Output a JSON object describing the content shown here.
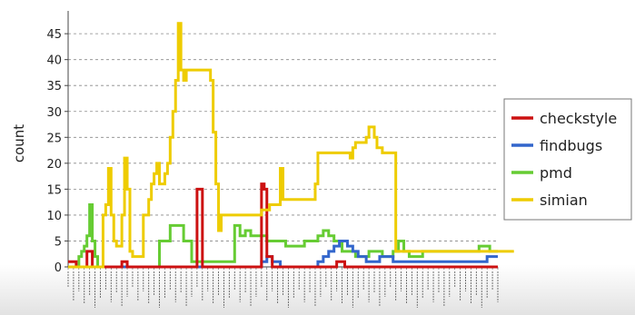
{
  "chart_data": {
    "type": "line",
    "title": "",
    "xlabel": "",
    "ylabel": "count",
    "ylim": [
      0,
      48
    ],
    "yticks": [
      0,
      5,
      10,
      15,
      20,
      25,
      30,
      35,
      40,
      45
    ],
    "grid": true,
    "legend_position": "right",
    "x_tick_labels_illegible": true,
    "step_count": 160,
    "series": [
      {
        "name": "checkstyle",
        "color": "#cc1111",
        "values": [
          1,
          1,
          1,
          0,
          0,
          0,
          0,
          3,
          3,
          0,
          0,
          0,
          0,
          0,
          0,
          0,
          0,
          0,
          0,
          0,
          1,
          1,
          0,
          0,
          0,
          0,
          0,
          0,
          0,
          0,
          0,
          0,
          0,
          0,
          0,
          0,
          0,
          0,
          0,
          0,
          0,
          0,
          0,
          0,
          0,
          0,
          0,
          0,
          15,
          15,
          0,
          0,
          0,
          0,
          0,
          0,
          0,
          0,
          0,
          0,
          0,
          0,
          0,
          0,
          0,
          0,
          0,
          0,
          0,
          0,
          0,
          0,
          16,
          15,
          2,
          2,
          0,
          0,
          0,
          0,
          0,
          0,
          0,
          0,
          0,
          0,
          0,
          0,
          0,
          0,
          0,
          0,
          0,
          0,
          0,
          0,
          0,
          0,
          0,
          0,
          1,
          1,
          1,
          0,
          0,
          0,
          0,
          0,
          0,
          0,
          0,
          0,
          0,
          0,
          0,
          0,
          0,
          0,
          0,
          0,
          0,
          0,
          0,
          0,
          0,
          0,
          0,
          0,
          0,
          0,
          0,
          0,
          0,
          0,
          0,
          0,
          0,
          0,
          0,
          0,
          0,
          0,
          0,
          0,
          0,
          0,
          0,
          0,
          0,
          0,
          0,
          0,
          0,
          0,
          0,
          0,
          0,
          0,
          0,
          0
        ]
      },
      {
        "name": "findbugs",
        "color": "#3366cc",
        "values": [
          0,
          0,
          0,
          0,
          0,
          0,
          0,
          0,
          0,
          0,
          0,
          0,
          0,
          0,
          0,
          0,
          0,
          0,
          0,
          0,
          0,
          0,
          0,
          0,
          0,
          0,
          0,
          0,
          0,
          0,
          0,
          0,
          0,
          0,
          0,
          0,
          0,
          0,
          0,
          0,
          0,
          0,
          0,
          0,
          0,
          0,
          0,
          0,
          0,
          0,
          0,
          0,
          0,
          0,
          0,
          0,
          0,
          0,
          0,
          0,
          0,
          0,
          0,
          0,
          0,
          0,
          0,
          0,
          0,
          0,
          0,
          0,
          1,
          1,
          2,
          2,
          1,
          1,
          1,
          0,
          0,
          0,
          0,
          0,
          0,
          0,
          0,
          0,
          0,
          0,
          0,
          0,
          0,
          1,
          1,
          2,
          2,
          3,
          3,
          4,
          4,
          5,
          5,
          5,
          4,
          4,
          3,
          3,
          2,
          2,
          2,
          1,
          1,
          1,
          1,
          1,
          2,
          2,
          2,
          2,
          2,
          1,
          1,
          1,
          1,
          1,
          1,
          1,
          1,
          1,
          1,
          1,
          1,
          1,
          1,
          1,
          1,
          1,
          1,
          1,
          1,
          1,
          1,
          1,
          1,
          1,
          1,
          1,
          1,
          1,
          1,
          1,
          1,
          1,
          1,
          1,
          2,
          2,
          2,
          2
        ]
      },
      {
        "name": "pmd",
        "color": "#66cc33",
        "values": [
          0,
          0,
          0,
          0,
          2,
          3,
          4,
          6,
          12,
          5,
          2,
          0,
          0,
          0,
          0,
          0,
          0,
          0,
          0,
          0,
          0,
          0,
          0,
          0,
          0,
          0,
          0,
          0,
          0,
          0,
          0,
          0,
          0,
          0,
          5,
          5,
          5,
          5,
          8,
          8,
          8,
          8,
          8,
          5,
          5,
          5,
          1,
          1,
          1,
          1,
          1,
          1,
          1,
          1,
          1,
          1,
          1,
          1,
          1,
          1,
          1,
          1,
          8,
          8,
          6,
          6,
          7,
          7,
          6,
          6,
          6,
          6,
          6,
          6,
          5,
          5,
          5,
          5,
          5,
          5,
          5,
          4,
          4,
          4,
          4,
          4,
          4,
          4,
          5,
          5,
          5,
          5,
          5,
          6,
          6,
          7,
          7,
          6,
          6,
          5,
          5,
          5,
          3,
          3,
          3,
          3,
          3,
          2,
          2,
          2,
          2,
          2,
          3,
          3,
          3,
          3,
          3,
          2,
          2,
          2,
          2,
          3,
          3,
          5,
          5,
          3,
          3,
          2,
          2,
          2,
          2,
          2,
          3,
          3,
          3,
          3,
          3,
          3,
          3,
          3,
          3,
          3,
          3,
          3,
          3,
          3,
          3,
          3,
          3,
          3,
          3,
          3,
          3,
          4,
          4,
          4,
          4,
          3,
          3,
          3
        ]
      },
      {
        "name": "simian",
        "color": "#eecc00",
        "values": [
          0,
          0,
          0,
          0,
          0,
          0,
          0,
          0,
          0,
          0,
          0,
          0,
          0,
          10,
          12,
          19,
          10,
          5,
          4,
          4,
          10,
          21,
          15,
          3,
          2,
          2,
          2,
          2,
          10,
          10,
          13,
          16,
          18,
          20,
          16,
          16,
          18,
          20,
          25,
          30,
          36,
          47,
          38,
          36,
          38,
          38,
          38,
          38,
          38,
          38,
          38,
          38,
          38,
          36,
          26,
          16,
          7,
          10,
          10,
          10,
          10,
          10,
          10,
          10,
          10,
          10,
          10,
          10,
          10,
          10,
          10,
          10,
          11,
          11,
          11,
          12,
          12,
          12,
          12,
          19,
          13,
          13,
          13,
          13,
          13,
          13,
          13,
          13,
          13,
          13,
          13,
          13,
          16,
          22,
          22,
          22,
          22,
          22,
          22,
          22,
          22,
          22,
          22,
          22,
          22,
          21,
          23,
          24,
          24,
          24,
          24,
          25,
          27,
          27,
          25,
          23,
          23,
          22,
          22,
          22,
          22,
          22,
          3,
          3,
          3,
          3,
          3,
          3,
          3,
          3,
          3,
          3,
          3,
          3,
          3,
          3,
          3,
          3,
          3,
          3,
          3,
          3,
          3,
          3,
          3,
          3,
          3,
          3,
          3,
          3,
          3,
          3,
          3,
          3,
          3,
          3,
          3,
          3,
          3,
          3,
          3,
          3,
          3,
          3,
          3,
          3
        ]
      }
    ]
  }
}
